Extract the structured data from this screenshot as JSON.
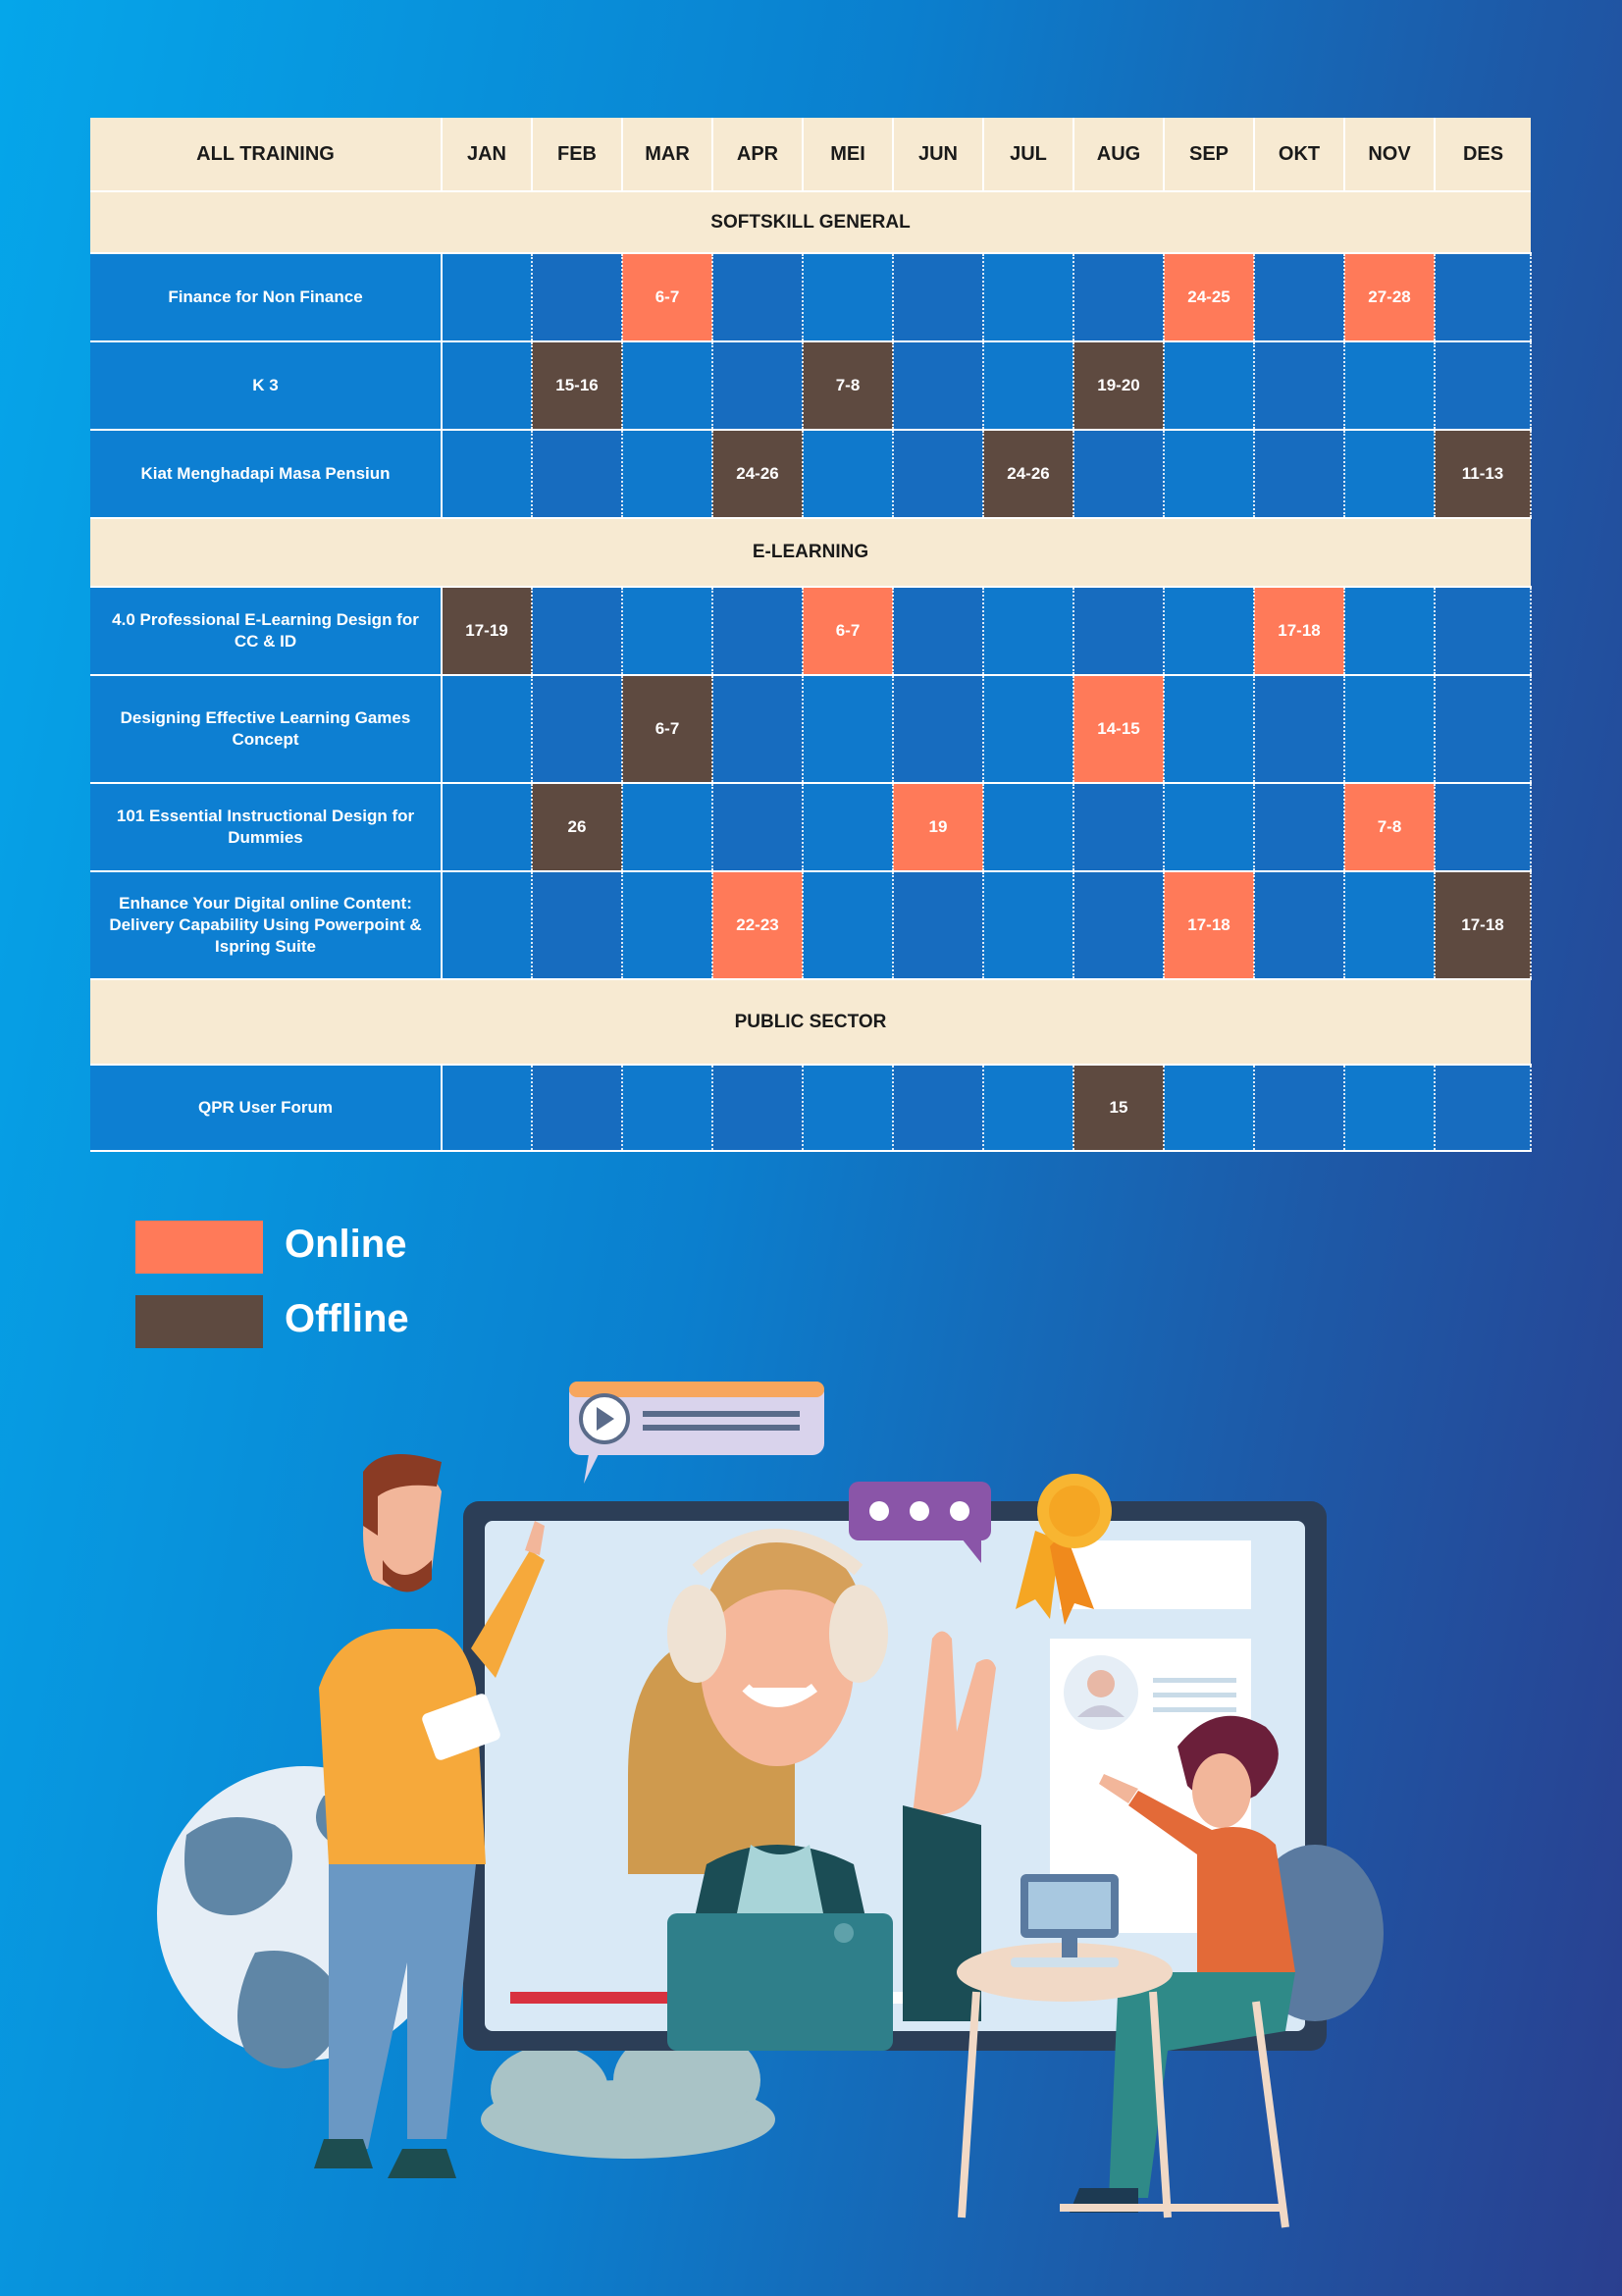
{
  "header": {
    "first_col": "ALL TRAINING",
    "months": [
      "JAN",
      "FEB",
      "MAR",
      "APR",
      "MEI",
      "JUN",
      "JUL",
      "AUG",
      "SEP",
      "OKT",
      "NOV",
      "DES"
    ]
  },
  "sections": [
    {
      "title": "SOFTSKILL GENERAL",
      "courses": [
        {
          "name": "Finance for Non Finance",
          "cells": [
            "",
            "",
            "6-7",
            "",
            "",
            "",
            "",
            "",
            "24-25",
            "",
            "27-28",
            ""
          ],
          "types": [
            "",
            "",
            "online",
            "",
            "",
            "",
            "",
            "",
            "online",
            "",
            "online",
            ""
          ]
        },
        {
          "name": "K 3",
          "cells": [
            "",
            "15-16",
            "",
            "",
            "7-8",
            "",
            "",
            "19-20",
            "",
            "",
            "",
            ""
          ],
          "types": [
            "",
            "offline",
            "",
            "",
            "offline",
            "",
            "",
            "offline",
            "",
            "",
            "",
            ""
          ]
        },
        {
          "name": "Kiat Menghadapi Masa Pensiun",
          "cells": [
            "",
            "",
            "",
            "24-26",
            "",
            "",
            "24-26",
            "",
            "",
            "",
            "",
            "11-13"
          ],
          "types": [
            "",
            "",
            "",
            "offline",
            "",
            "",
            "offline",
            "",
            "",
            "",
            "",
            "offline"
          ]
        }
      ]
    },
    {
      "title": "E-LEARNING",
      "courses": [
        {
          "name": "4.0 Professional E-Learning Design for CC & ID",
          "cells": [
            "17-19",
            "",
            "",
            "",
            "6-7",
            "",
            "",
            "",
            "",
            "17-18",
            "",
            ""
          ],
          "types": [
            "offline",
            "",
            "",
            "",
            "online",
            "",
            "",
            "",
            "",
            "online",
            "",
            ""
          ]
        },
        {
          "name": "Designing Effective Learning Games Concept",
          "cells": [
            "",
            "",
            "6-7",
            "",
            "",
            "",
            "",
            "14-15",
            "",
            "",
            "",
            ""
          ],
          "types": [
            "",
            "",
            "offline",
            "",
            "",
            "",
            "",
            "online",
            "",
            "",
            "",
            ""
          ]
        },
        {
          "name": "101 Essential Instructional Design for Dummies",
          "cells": [
            "",
            "26",
            "",
            "",
            "",
            "19",
            "",
            "",
            "",
            "",
            "7-8",
            ""
          ],
          "types": [
            "",
            "offline",
            "",
            "",
            "",
            "online",
            "",
            "",
            "",
            "",
            "online",
            ""
          ]
        },
        {
          "name": "Enhance Your Digital online Content: Delivery Capability Using Powerpoint & Ispring Suite",
          "cells": [
            "",
            "",
            "",
            "22-23",
            "",
            "",
            "",
            "",
            "17-18",
            "",
            "",
            "17-18"
          ],
          "types": [
            "",
            "",
            "",
            "online",
            "",
            "",
            "",
            "",
            "online",
            "",
            "",
            "offline"
          ]
        }
      ]
    },
    {
      "title": "PUBLIC SECTOR",
      "courses": [
        {
          "name": "QPR User Forum",
          "cells": [
            "",
            "",
            "",
            "",
            "",
            "",
            "",
            "15",
            "",
            "",
            "",
            ""
          ],
          "types": [
            "",
            "",
            "",
            "",
            "",
            "",
            "",
            "offline",
            "",
            "",
            "",
            ""
          ]
        }
      ]
    }
  ],
  "legend": {
    "online_label": "Online",
    "offline_label": "Offline"
  },
  "colors": {
    "online": "#ff7a59",
    "offline": "#5e4a40",
    "section_bg": "#f7ead2"
  }
}
